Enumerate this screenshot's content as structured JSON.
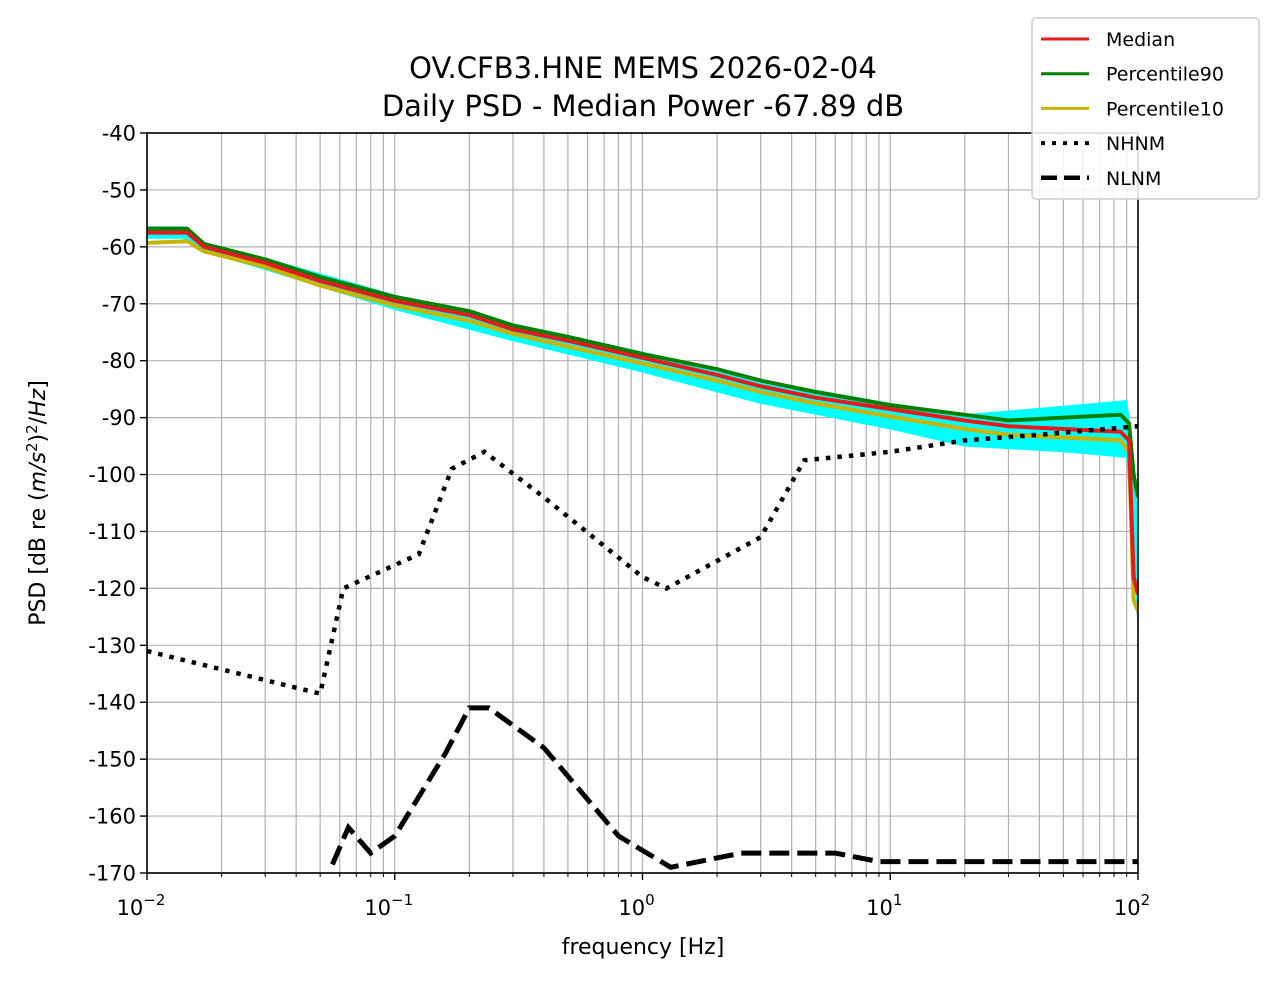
{
  "chart_data": {
    "type": "line",
    "title_line1": "OV.CFB3.HNE MEMS 2026-02-04",
    "title_line2": "Daily PSD - Median Power -67.89 dB",
    "xlabel": "frequency [Hz]",
    "ylabel_prefix": "PSD [dB re (",
    "ylabel_math1": "m/s",
    "ylabel_sup1": "2",
    "ylabel_close": ")",
    "ylabel_sup2": "2",
    "ylabel_slash": "/",
    "ylabel_math2": "Hz",
    "ylabel_suffix": "]",
    "xscale": "log",
    "xlim": [
      0.01,
      100
    ],
    "ylim": [
      -170,
      -40
    ],
    "x_ticks": [
      {
        "value": 0.01,
        "base": "10",
        "exp": "−2"
      },
      {
        "value": 0.1,
        "base": "10",
        "exp": "−1"
      },
      {
        "value": 1,
        "base": "10",
        "exp": "0"
      },
      {
        "value": 10,
        "base": "10",
        "exp": "1"
      },
      {
        "value": 100,
        "base": "10",
        "exp": "2"
      }
    ],
    "y_ticks": [
      {
        "value": -40,
        "label": "-40"
      },
      {
        "value": -50,
        "label": "-50"
      },
      {
        "value": -60,
        "label": "-60"
      },
      {
        "value": -70,
        "label": "-70"
      },
      {
        "value": -80,
        "label": "-80"
      },
      {
        "value": -90,
        "label": "-90"
      },
      {
        "value": -100,
        "label": "-100"
      },
      {
        "value": -110,
        "label": "-110"
      },
      {
        "value": -120,
        "label": "-120"
      },
      {
        "value": -130,
        "label": "-130"
      },
      {
        "value": -140,
        "label": "-140"
      },
      {
        "value": -150,
        "label": "-150"
      },
      {
        "value": -160,
        "label": "-160"
      },
      {
        "value": -170,
        "label": "-170"
      }
    ],
    "grid": true,
    "legend_placement": "top-right, outside",
    "band": {
      "color": "#00ffff",
      "upper": [
        [
          0.01,
          -56.5
        ],
        [
          0.014,
          -56.5
        ],
        [
          0.016,
          -59
        ],
        [
          0.03,
          -62
        ],
        [
          0.1,
          -68.5
        ],
        [
          0.3,
          -73.5
        ],
        [
          1,
          -78.5
        ],
        [
          3,
          -83.5
        ],
        [
          10,
          -87.5
        ],
        [
          20,
          -89.5
        ],
        [
          50,
          -88
        ],
        [
          90,
          -87
        ],
        [
          95,
          -95
        ],
        [
          100,
          -108
        ]
      ],
      "lower": [
        [
          0.01,
          -58.5
        ],
        [
          0.014,
          -58.5
        ],
        [
          0.016,
          -60.5
        ],
        [
          0.03,
          -64
        ],
        [
          0.1,
          -71
        ],
        [
          0.3,
          -76.5
        ],
        [
          1,
          -82
        ],
        [
          3,
          -87.5
        ],
        [
          10,
          -92
        ],
        [
          20,
          -95
        ],
        [
          50,
          -96
        ],
        [
          90,
          -97
        ],
        [
          95,
          -110
        ],
        [
          100,
          -127
        ]
      ]
    },
    "series": [
      {
        "name": "Median",
        "color": "#e41a1c",
        "style": "solid",
        "points": [
          [
            0.01,
            -57.5
          ],
          [
            0.0145,
            -57.5
          ],
          [
            0.017,
            -60
          ],
          [
            0.03,
            -62.8
          ],
          [
            0.05,
            -66
          ],
          [
            0.1,
            -69.5
          ],
          [
            0.2,
            -72
          ],
          [
            0.3,
            -74.5
          ],
          [
            0.5,
            -76.5
          ],
          [
            1,
            -79.5
          ],
          [
            2,
            -82.5
          ],
          [
            3,
            -84.5
          ],
          [
            5,
            -86.5
          ],
          [
            10,
            -88.5
          ],
          [
            20,
            -90.5
          ],
          [
            30,
            -91.5
          ],
          [
            50,
            -92
          ],
          [
            85,
            -92.5
          ],
          [
            92,
            -94
          ],
          [
            96,
            -118
          ],
          [
            100,
            -121
          ]
        ]
      },
      {
        "name": "Percentile90",
        "color": "#008000",
        "style": "solid",
        "points": [
          [
            0.01,
            -56.8
          ],
          [
            0.0145,
            -56.8
          ],
          [
            0.017,
            -59.5
          ],
          [
            0.03,
            -62.2
          ],
          [
            0.05,
            -65.3
          ],
          [
            0.1,
            -68.8
          ],
          [
            0.2,
            -71.3
          ],
          [
            0.3,
            -73.8
          ],
          [
            0.5,
            -75.8
          ],
          [
            1,
            -78.8
          ],
          [
            2,
            -81.5
          ],
          [
            3,
            -83.5
          ],
          [
            5,
            -85.5
          ],
          [
            10,
            -87.8
          ],
          [
            20,
            -89.5
          ],
          [
            30,
            -90.5
          ],
          [
            50,
            -90
          ],
          [
            85,
            -89.5
          ],
          [
            92,
            -91
          ],
          [
            96,
            -100
          ],
          [
            100,
            -104
          ]
        ]
      },
      {
        "name": "Percentile10",
        "color": "#c8b400",
        "style": "solid",
        "points": [
          [
            0.01,
            -59.3
          ],
          [
            0.0145,
            -59
          ],
          [
            0.017,
            -60.8
          ],
          [
            0.03,
            -63.5
          ],
          [
            0.05,
            -66.8
          ],
          [
            0.1,
            -70.3
          ],
          [
            0.2,
            -73
          ],
          [
            0.3,
            -75.3
          ],
          [
            0.5,
            -77.5
          ],
          [
            1,
            -80.5
          ],
          [
            2,
            -83.5
          ],
          [
            3,
            -85.5
          ],
          [
            5,
            -87.5
          ],
          [
            10,
            -89.8
          ],
          [
            20,
            -92
          ],
          [
            30,
            -93
          ],
          [
            50,
            -93.5
          ],
          [
            85,
            -94
          ],
          [
            92,
            -96
          ],
          [
            96,
            -122
          ],
          [
            100,
            -124
          ]
        ]
      },
      {
        "name": "NHNM",
        "color": "#000000",
        "style": "dotted",
        "points": [
          [
            0.01,
            -131
          ],
          [
            0.05,
            -138.5
          ],
          [
            0.062,
            -120
          ],
          [
            0.125,
            -114
          ],
          [
            0.17,
            -99
          ],
          [
            0.23,
            -96
          ],
          [
            0.4,
            -104
          ],
          [
            1,
            -118
          ],
          [
            1.25,
            -120
          ],
          [
            3,
            -111
          ],
          [
            4.5,
            -97.5
          ],
          [
            10,
            -96
          ],
          [
            20,
            -94
          ],
          [
            40,
            -93
          ],
          [
            100,
            -91.5
          ]
        ]
      },
      {
        "name": "NLNM",
        "color": "#000000",
        "style": "dashed",
        "points": [
          [
            0.056,
            -168.5
          ],
          [
            0.065,
            -162
          ],
          [
            0.08,
            -166.5
          ],
          [
            0.1,
            -163.5
          ],
          [
            0.16,
            -149
          ],
          [
            0.2,
            -141
          ],
          [
            0.24,
            -141
          ],
          [
            0.4,
            -148
          ],
          [
            0.8,
            -163.5
          ],
          [
            1.3,
            -169
          ],
          [
            2.5,
            -166.5
          ],
          [
            6,
            -166.5
          ],
          [
            9,
            -168
          ],
          [
            100,
            -168
          ]
        ]
      }
    ],
    "legend": [
      {
        "label": "Median",
        "color": "#e41a1c",
        "style": "solid"
      },
      {
        "label": "Percentile90",
        "color": "#008000",
        "style": "solid"
      },
      {
        "label": "Percentile10",
        "color": "#c8b400",
        "style": "solid"
      },
      {
        "label": "NHNM",
        "color": "#000000",
        "style": "dotted"
      },
      {
        "label": "NLNM",
        "color": "#000000",
        "style": "dashed"
      }
    ]
  }
}
